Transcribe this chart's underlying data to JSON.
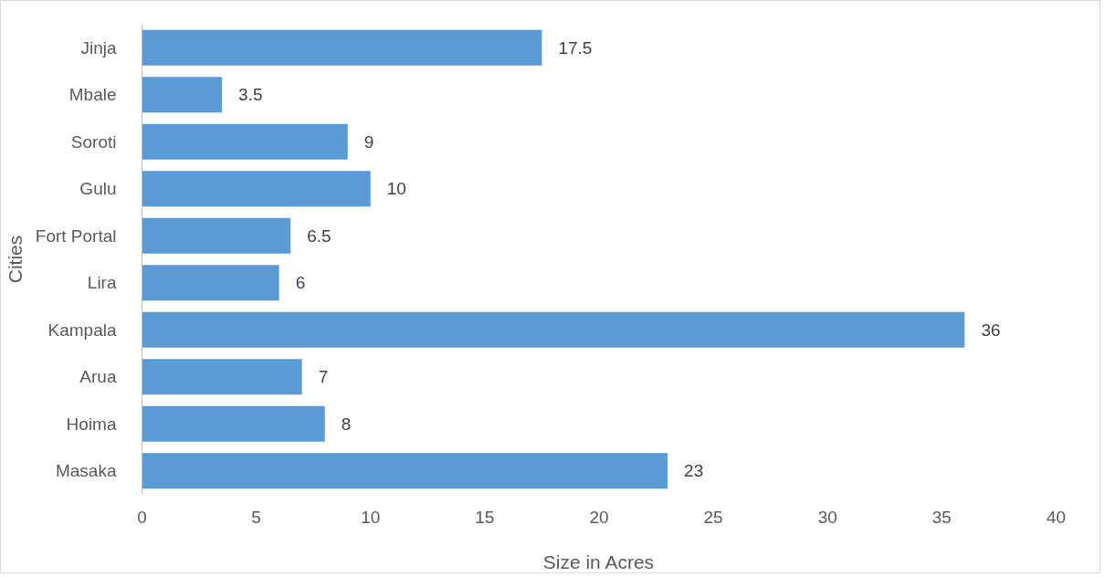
{
  "chart_data": {
    "type": "bar",
    "orientation": "horizontal",
    "xlabel": "Size in Acres",
    "ylabel": "Cities",
    "categories": [
      "Jinja",
      "Mbale",
      "Soroti",
      "Gulu",
      "Fort Portal",
      "Lira",
      "Kampala",
      "Arua",
      "Hoima",
      "Masaka"
    ],
    "values": [
      17.5,
      3.5,
      9,
      10,
      6.5,
      6,
      36,
      7,
      8,
      23
    ],
    "color": "#5b9bd5",
    "xlim": [
      0,
      40
    ],
    "xticks": [
      0,
      5,
      10,
      15,
      20,
      25,
      30,
      35,
      40
    ],
    "grid": false,
    "data_labels": true
  }
}
